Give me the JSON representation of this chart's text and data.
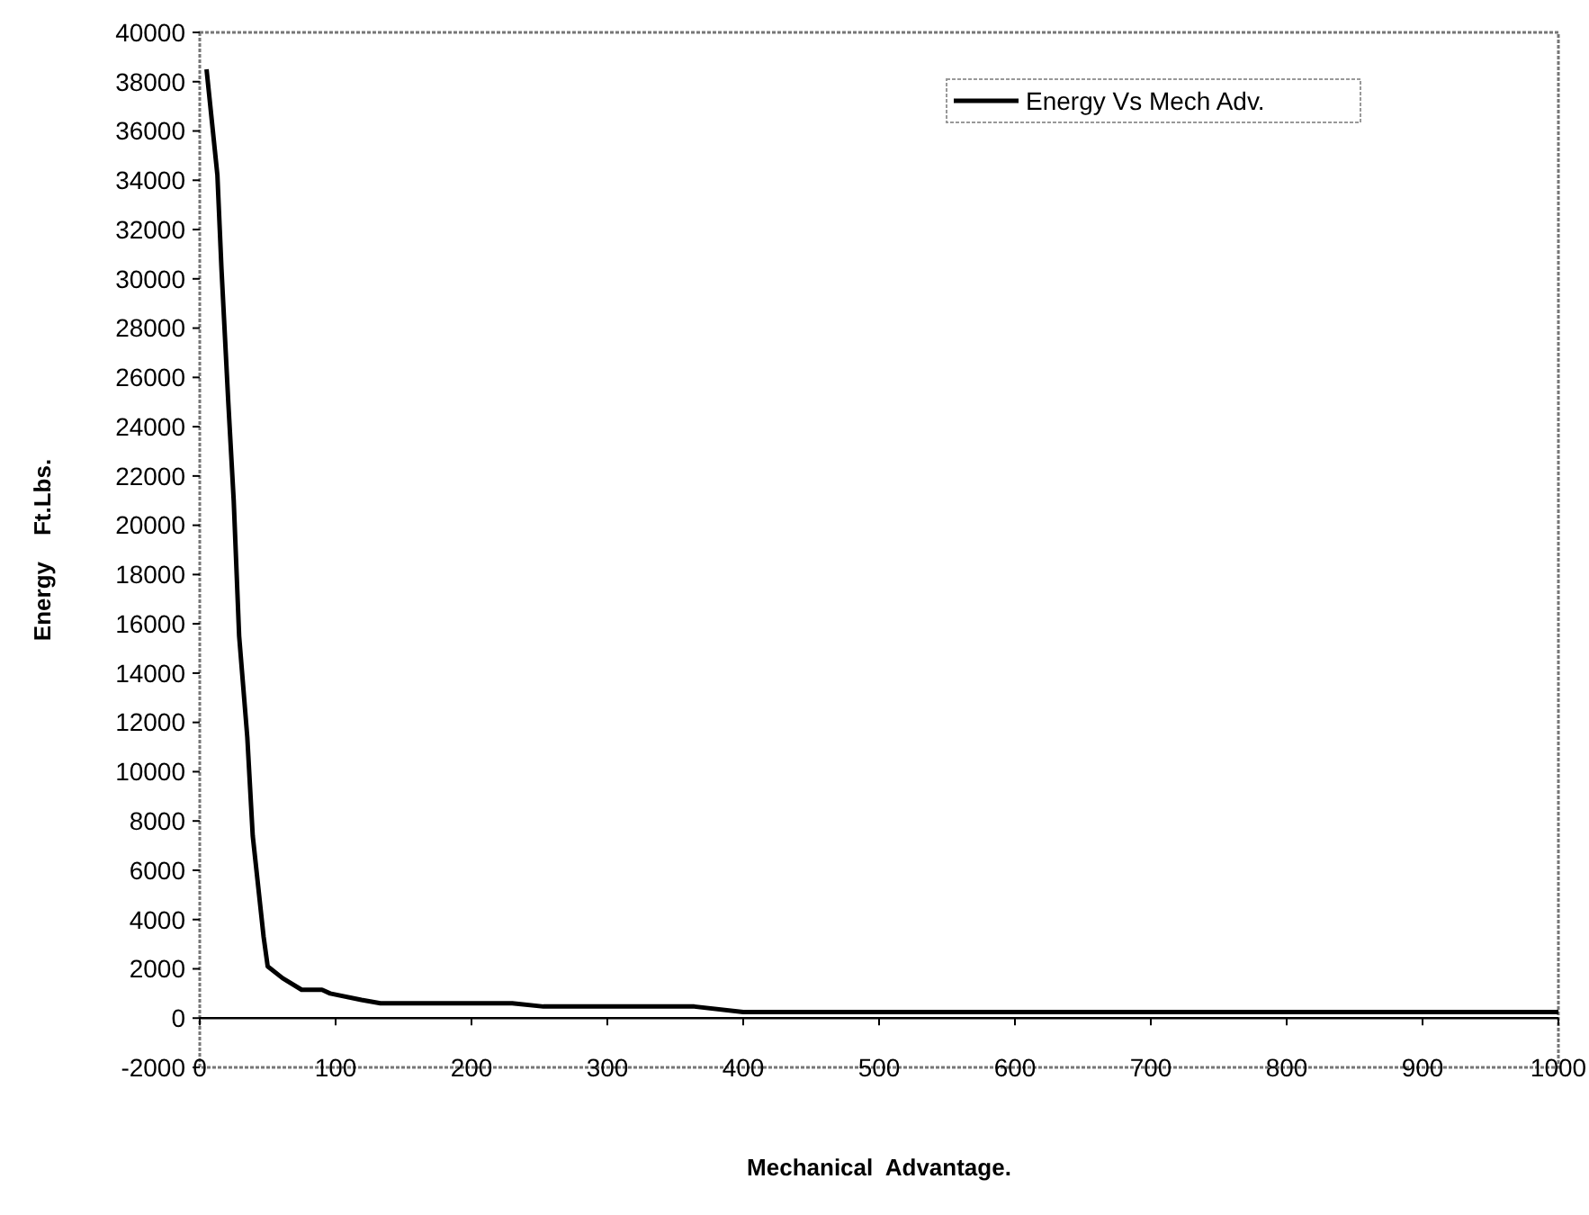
{
  "chart_data": {
    "type": "line",
    "xlabel": "Mechanical  Advantage.",
    "ylabel": "Energy    Ft.Lbs.",
    "xlim": [
      0,
      1000
    ],
    "xticks": [
      0,
      100,
      200,
      300,
      400,
      500,
      600,
      700,
      800,
      900,
      1000
    ],
    "ylim": [
      -2000,
      40000
    ],
    "yticks": [
      -2000,
      0,
      2000,
      4000,
      6000,
      8000,
      10000,
      12000,
      14000,
      16000,
      18000,
      20000,
      22000,
      24000,
      26000,
      28000,
      30000,
      32000,
      34000,
      36000,
      38000,
      40000
    ],
    "legend": "top right",
    "marker": "none",
    "line_style": "solid",
    "series": [
      {
        "name": "Energy Vs Mech Adv.",
        "color": "#000000",
        "x": [
          5,
          13,
          16,
          21,
          25,
          29,
          35,
          39,
          47,
          50,
          61,
          75,
          90,
          96,
          119,
          133,
          180,
          230,
          253,
          300,
          364,
          400,
          450,
          500,
          600,
          700,
          800,
          900,
          1000
        ],
        "values": [
          38500,
          34200,
          30400,
          25000,
          21000,
          15500,
          11400,
          7400,
          3300,
          2100,
          1620,
          1150,
          1150,
          1000,
          740,
          600,
          600,
          600,
          470,
          470,
          470,
          250,
          250,
          250,
          250,
          250,
          250,
          250,
          250
        ]
      }
    ]
  }
}
